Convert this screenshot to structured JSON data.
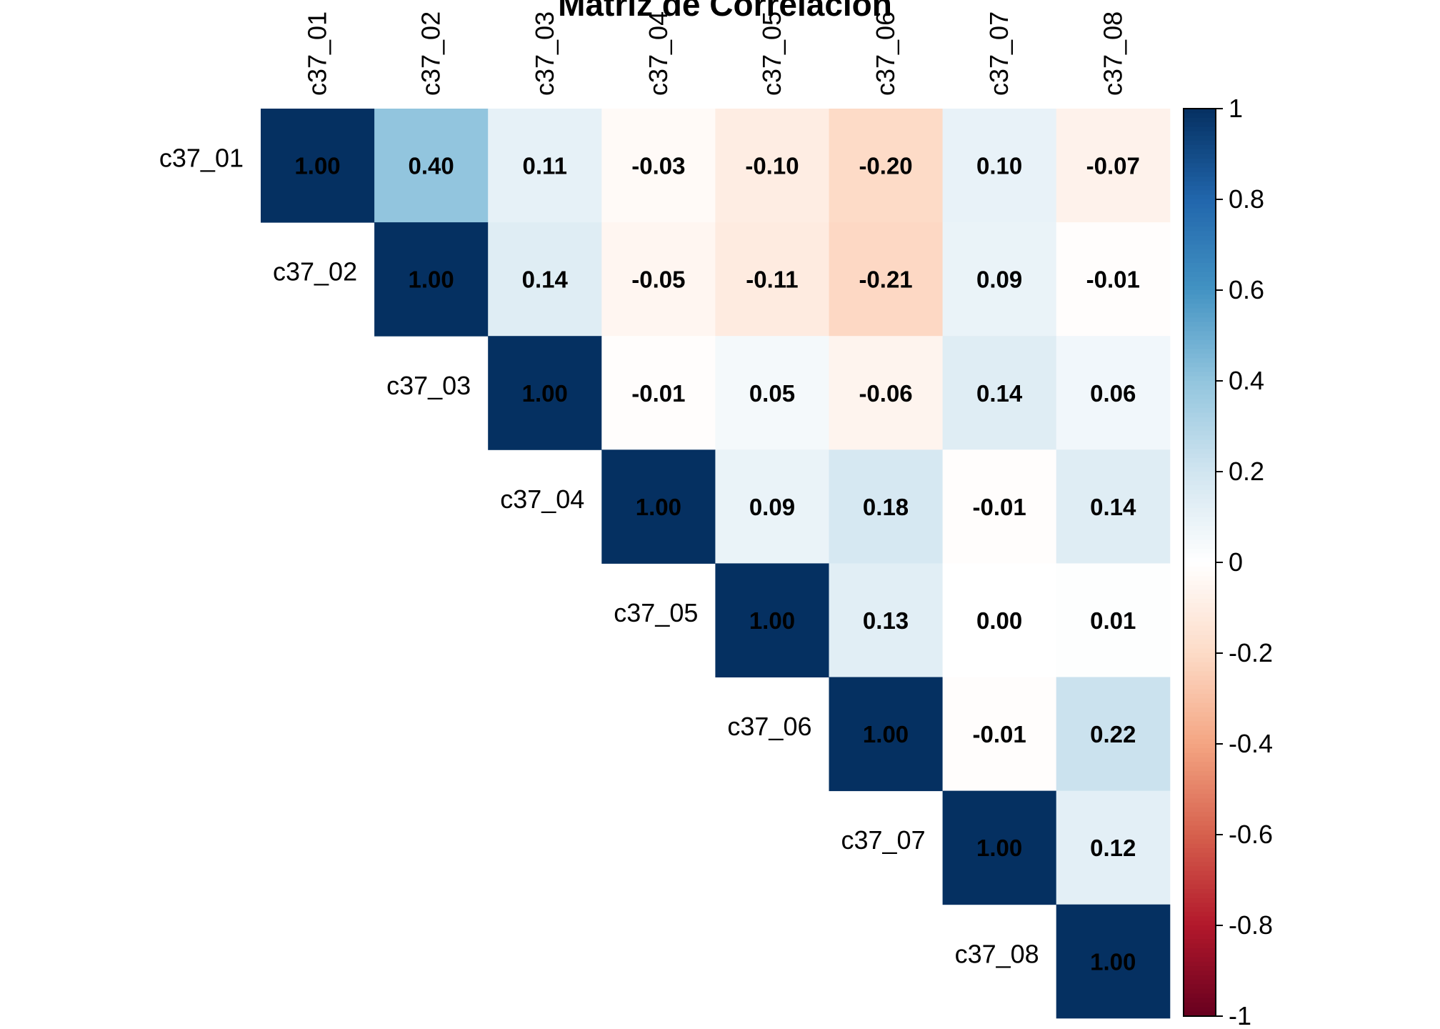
{
  "chart_data": {
    "type": "heatmap",
    "title": "Matriz de Correlación",
    "variables": [
      "c37_01",
      "c37_02",
      "c37_03",
      "c37_04",
      "c37_05",
      "c37_06",
      "c37_07",
      "c37_08"
    ],
    "matrix": [
      [
        1.0,
        0.4,
        0.11,
        -0.03,
        -0.1,
        -0.2,
        0.1,
        -0.07
      ],
      [
        null,
        1.0,
        0.14,
        -0.05,
        -0.11,
        -0.21,
        0.09,
        -0.01
      ],
      [
        null,
        null,
        1.0,
        -0.01,
        0.05,
        -0.06,
        0.14,
        0.06
      ],
      [
        null,
        null,
        null,
        1.0,
        0.09,
        0.18,
        -0.01,
        0.14
      ],
      [
        null,
        null,
        null,
        null,
        1.0,
        0.13,
        0.0,
        0.01
      ],
      [
        null,
        null,
        null,
        null,
        null,
        1.0,
        -0.01,
        0.22
      ],
      [
        null,
        null,
        null,
        null,
        null,
        null,
        1.0,
        0.12
      ],
      [
        null,
        null,
        null,
        null,
        null,
        null,
        null,
        1.0
      ]
    ],
    "display": "upper triangle",
    "colorbar": {
      "range": [
        -1,
        1
      ],
      "ticks": [
        "1",
        "0.8",
        "0.6",
        "0.4",
        "0.2",
        "0",
        "-0.2",
        "-0.4",
        "-0.6",
        "-0.8",
        "-1"
      ],
      "tick_values": [
        1,
        0.8,
        0.6,
        0.4,
        0.2,
        0,
        -0.2,
        -0.4,
        -0.6,
        -0.8,
        -1
      ],
      "palette": [
        "#67001F",
        "#B2182B",
        "#D6604D",
        "#F4A582",
        "#FDDBC7",
        "#FFFFFF",
        "#D1E5F0",
        "#92C5DE",
        "#4393C3",
        "#2166AC",
        "#053061"
      ],
      "position": "right"
    }
  }
}
